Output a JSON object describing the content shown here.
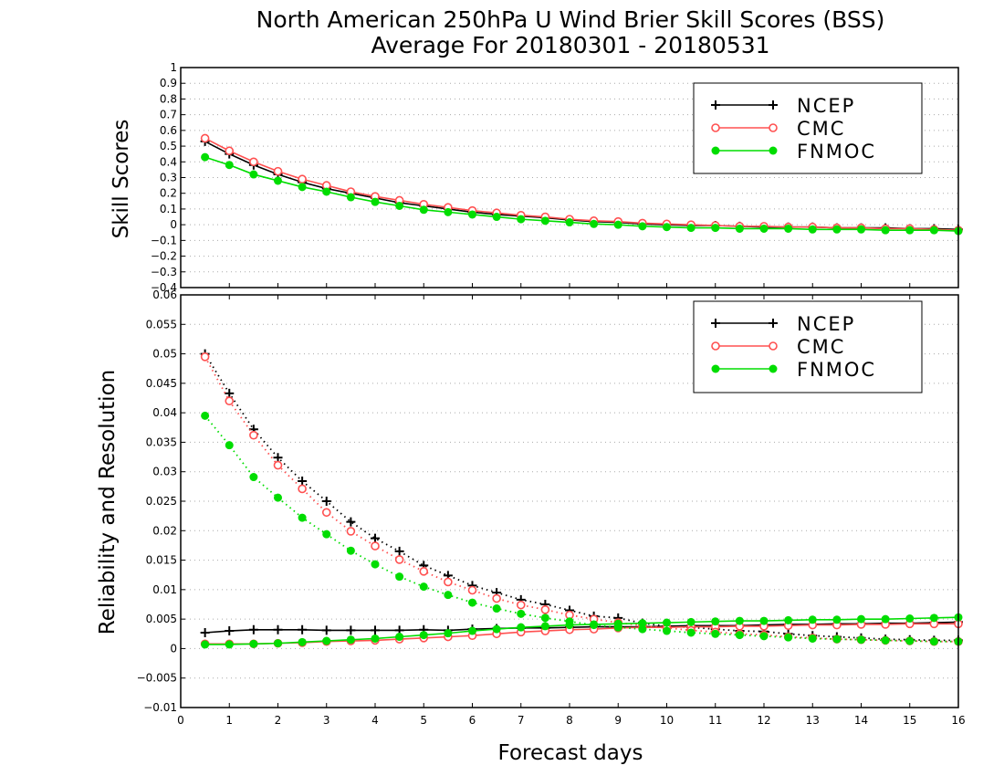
{
  "chart_data": [
    {
      "type": "line",
      "title_lines": [
        "North American 250hPa U Wind Brier Skill Scores (BSS)",
        "Average For 20180301 - 20180531"
      ],
      "xlabel": "Forecast days",
      "ylabel": "Skill Scores",
      "xlim": [
        0,
        16
      ],
      "ylim": [
        -0.4,
        1
      ],
      "yticks": [
        "1",
        "0.9",
        "0.8",
        "0.7",
        "0.6",
        "0.5",
        "0.4",
        "0.3",
        "0.2",
        "0.1",
        "0",
        "−0.1",
        "−0.2",
        "−0.3",
        "−0.4"
      ],
      "grid": "horizontal dotted",
      "legend_position": "top-right",
      "x": [
        0.5,
        1,
        1.5,
        2,
        2.5,
        3,
        3.5,
        4,
        4.5,
        5,
        5.5,
        6,
        6.5,
        7,
        7.5,
        8,
        8.5,
        9,
        9.5,
        10,
        10.5,
        11,
        11.5,
        12,
        12.5,
        13,
        13.5,
        14,
        14.5,
        15,
        15.5,
        16
      ],
      "series": [
        {
          "name": "NCEP",
          "color": "#000000",
          "marker": "plus",
          "values": [
            0.53,
            0.45,
            0.38,
            0.32,
            0.27,
            0.23,
            0.2,
            0.17,
            0.14,
            0.12,
            0.1,
            0.08,
            0.065,
            0.055,
            0.045,
            0.03,
            0.02,
            0.015,
            0.005,
            0,
            -0.005,
            -0.005,
            -0.01,
            -0.015,
            -0.015,
            -0.015,
            -0.02,
            -0.02,
            -0.02,
            -0.025,
            -0.025,
            -0.03
          ]
        },
        {
          "name": "CMC",
          "color": "#ff5050",
          "marker": "open-circle",
          "values": [
            0.55,
            0.47,
            0.4,
            0.34,
            0.29,
            0.25,
            0.21,
            0.18,
            0.155,
            0.13,
            0.11,
            0.09,
            0.075,
            0.06,
            0.05,
            0.035,
            0.025,
            0.02,
            0.01,
            0.005,
            0,
            -0.005,
            -0.01,
            -0.01,
            -0.015,
            -0.015,
            -0.02,
            -0.02,
            -0.025,
            -0.025,
            -0.03,
            -0.035
          ]
        },
        {
          "name": "FNMOC",
          "color": "#00dd00",
          "marker": "filled-circle",
          "values": [
            0.43,
            0.38,
            0.32,
            0.28,
            0.24,
            0.21,
            0.175,
            0.145,
            0.12,
            0.095,
            0.08,
            0.065,
            0.05,
            0.035,
            0.025,
            0.015,
            0.005,
            0,
            -0.01,
            -0.015,
            -0.02,
            -0.02,
            -0.025,
            -0.025,
            -0.025,
            -0.03,
            -0.03,
            -0.03,
            -0.035,
            -0.035,
            -0.035,
            -0.04
          ]
        }
      ]
    },
    {
      "type": "line",
      "xlabel": "Forecast days",
      "ylabel": "Reliability and Resolution",
      "xlim": [
        0,
        16
      ],
      "ylim": [
        -0.01,
        0.06
      ],
      "xticks": [
        "0",
        "1",
        "2",
        "3",
        "4",
        "5",
        "6",
        "7",
        "8",
        "9",
        "10",
        "11",
        "12",
        "13",
        "14",
        "15",
        "16"
      ],
      "yticks": [
        "0.06",
        "0.055",
        "0.05",
        "0.045",
        "0.04",
        "0.035",
        "0.03",
        "0.025",
        "0.02",
        "0.015",
        "0.01",
        "0.005",
        "0",
        "−0.005",
        "−0.01"
      ],
      "grid": "horizontal dotted",
      "legend_position": "top-right",
      "x": [
        0.5,
        1,
        1.5,
        2,
        2.5,
        3,
        3.5,
        4,
        4.5,
        5,
        5.5,
        6,
        6.5,
        7,
        7.5,
        8,
        8.5,
        9,
        9.5,
        10,
        10.5,
        11,
        11.5,
        12,
        12.5,
        13,
        13.5,
        14,
        14.5,
        15,
        15.5,
        16
      ],
      "series": [
        {
          "name": "NCEP",
          "color": "#000000",
          "marker": "plus",
          "line": "solid",
          "values": [
            0.0027,
            0.003,
            0.0032,
            0.0032,
            0.0032,
            0.0031,
            0.0031,
            0.0031,
            0.0031,
            0.0032,
            0.0031,
            0.0033,
            0.0034,
            0.0035,
            0.0035,
            0.0036,
            0.0037,
            0.0037,
            0.0037,
            0.0038,
            0.0039,
            0.0039,
            0.0039,
            0.004,
            0.0041,
            0.0041,
            0.0042,
            0.0042,
            0.0043,
            0.0043,
            0.0044,
            0.0045
          ]
        },
        {
          "name": "NCEP",
          "color": "#000000",
          "marker": "plus",
          "line": "dotted",
          "values": [
            0.05,
            0.0433,
            0.0372,
            0.0324,
            0.0284,
            0.025,
            0.0215,
            0.0187,
            0.0165,
            0.0141,
            0.0124,
            0.0107,
            0.0095,
            0.0083,
            0.0075,
            0.0065,
            0.0055,
            0.0052,
            0.0043,
            0.0038,
            0.0036,
            0.0033,
            0.003,
            0.0029,
            0.0025,
            0.0022,
            0.002,
            0.0018,
            0.0016,
            0.0015,
            0.0014,
            0.0014
          ]
        },
        {
          "name": "CMC",
          "color": "#ff5050",
          "marker": "open-circle",
          "line": "solid",
          "values": [
            0.0008,
            0.0008,
            0.0008,
            0.0009,
            0.001,
            0.0012,
            0.0013,
            0.0014,
            0.0016,
            0.0018,
            0.002,
            0.0022,
            0.0025,
            0.0028,
            0.003,
            0.0032,
            0.0033,
            0.0035,
            0.0036,
            0.0036,
            0.0037,
            0.0037,
            0.0038,
            0.0038,
            0.0039,
            0.004,
            0.004,
            0.0041,
            0.0041,
            0.0042,
            0.0042,
            0.0042
          ]
        },
        {
          "name": "CMC",
          "color": "#ff5050",
          "marker": "open-circle",
          "line": "dotted",
          "values": [
            0.0495,
            0.042,
            0.0362,
            0.0311,
            0.0271,
            0.0231,
            0.0199,
            0.0174,
            0.0151,
            0.0131,
            0.0113,
            0.0099,
            0.0085,
            0.0074,
            0.0066,
            0.0057,
            0.005,
            0.0044,
            0.0039,
            0.0035,
            0.0031,
            0.0028,
            0.0025,
            0.0023,
            0.002,
            0.0018,
            0.0016,
            0.0015,
            0.0014,
            0.0013,
            0.0012,
            0.0012
          ]
        },
        {
          "name": "FNMOC",
          "color": "#00dd00",
          "marker": "filled-circle",
          "line": "solid",
          "values": [
            0.0007,
            0.0007,
            0.0008,
            0.0009,
            0.0011,
            0.0013,
            0.0015,
            0.0017,
            0.002,
            0.0023,
            0.0026,
            0.003,
            0.0033,
            0.0036,
            0.0038,
            0.004,
            0.0041,
            0.0042,
            0.0043,
            0.0044,
            0.0045,
            0.0046,
            0.0047,
            0.0047,
            0.0048,
            0.0049,
            0.0049,
            0.005,
            0.005,
            0.0051,
            0.0052,
            0.0053
          ]
        },
        {
          "name": "FNMOC",
          "color": "#00dd00",
          "marker": "filled-circle",
          "line": "dotted",
          "values": [
            0.0395,
            0.0345,
            0.0291,
            0.0256,
            0.0222,
            0.0194,
            0.0166,
            0.0143,
            0.0122,
            0.0105,
            0.0091,
            0.0078,
            0.0068,
            0.0059,
            0.0052,
            0.0046,
            0.004,
            0.0036,
            0.0033,
            0.003,
            0.0027,
            0.0025,
            0.0023,
            0.0021,
            0.0019,
            0.0017,
            0.0016,
            0.0015,
            0.0014,
            0.0013,
            0.0012,
            0.0012
          ]
        }
      ]
    }
  ]
}
